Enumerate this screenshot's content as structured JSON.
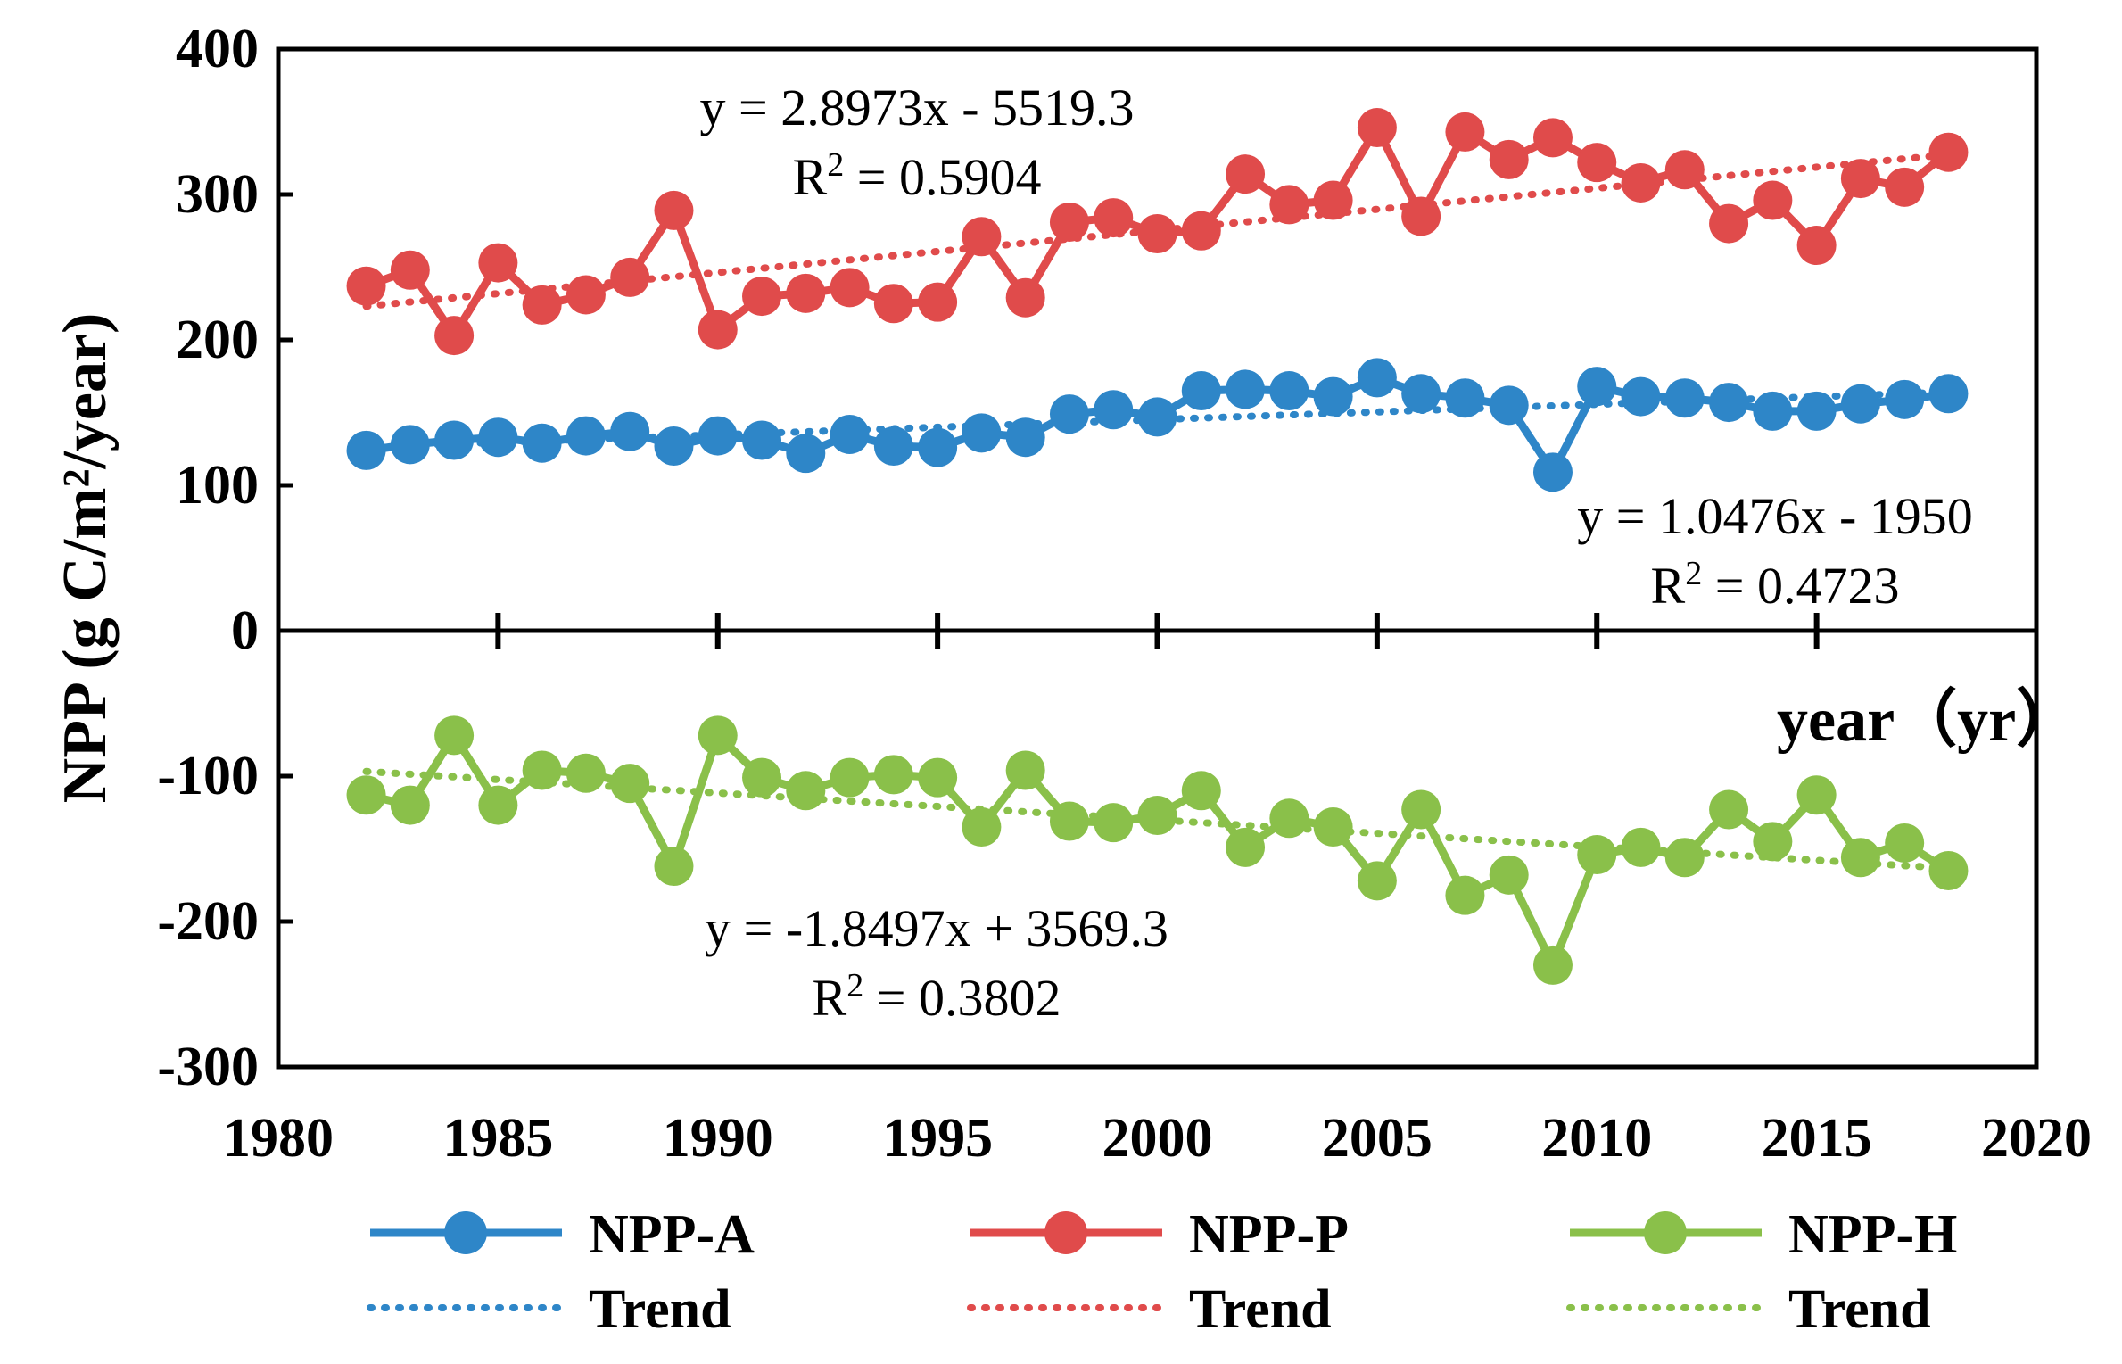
{
  "chart_data": {
    "type": "line",
    "ylabel": "NPP (g C/m²/year)",
    "xlabel": "year（yr）",
    "xlim": [
      1980,
      2020
    ],
    "ylim": [
      -300,
      400
    ],
    "xticks": [
      1980,
      1985,
      1990,
      1995,
      2000,
      2005,
      2010,
      2015,
      2020
    ],
    "yticks": [
      -300,
      -200,
      -100,
      0,
      100,
      200,
      300,
      400
    ],
    "grid": false,
    "legend_position": "bottom",
    "x": [
      1982,
      1983,
      1984,
      1985,
      1986,
      1987,
      1988,
      1989,
      1990,
      1991,
      1992,
      1993,
      1994,
      1995,
      1996,
      1997,
      1998,
      1999,
      2000,
      2001,
      2002,
      2003,
      2004,
      2005,
      2006,
      2007,
      2008,
      2009,
      2010,
      2011,
      2012,
      2013,
      2014,
      2015,
      2016,
      2017,
      2018
    ],
    "series": [
      {
        "name": "NPP-A",
        "color": "#2e86c8",
        "values": [
          124,
          128,
          131,
          133,
          129,
          134,
          137,
          127,
          134,
          131,
          122,
          135,
          127,
          126,
          136,
          133,
          149,
          152,
          147,
          165,
          166,
          165,
          161,
          174,
          163,
          160,
          155,
          109,
          168,
          161,
          160,
          157,
          151,
          151,
          156,
          159,
          163
        ]
      },
      {
        "name": "NPP-P",
        "color": "#e04b4b",
        "values": [
          237,
          248,
          203,
          253,
          224,
          231,
          243,
          289,
          207,
          230,
          232,
          236,
          225,
          226,
          271,
          229,
          281,
          284,
          273,
          275,
          314,
          293,
          296,
          346,
          285,
          343,
          324,
          339,
          322,
          308,
          317,
          280,
          296,
          265,
          311,
          305,
          329
        ]
      },
      {
        "name": "NPP-H",
        "color": "#8ac04a",
        "values": [
          -113,
          -120,
          -72,
          -120,
          -96,
          -98,
          -105,
          -162,
          -72,
          -101,
          -110,
          -101,
          -99,
          -101,
          -135,
          -96,
          -131,
          -132,
          -127,
          -110,
          -149,
          -129,
          -135,
          -172,
          -123,
          -182,
          -168,
          -230,
          -154,
          -149,
          -156,
          -123,
          -145,
          -113,
          -156,
          -146,
          -165
        ]
      }
    ],
    "trends": [
      {
        "name": "Trend",
        "series": "NPP-A",
        "slope": 1.0476,
        "intercept": -1950,
        "equation": "y = 1.0476x - 1950",
        "r2_prefix": "R",
        "r2_sup": "2",
        "r2_value": " = 0.4723"
      },
      {
        "name": "Trend",
        "series": "NPP-P",
        "slope": 2.8973,
        "intercept": -5519.3,
        "equation": "y = 2.8973x - 5519.3",
        "r2_prefix": "R",
        "r2_sup": "2",
        "r2_value": " = 0.5904"
      },
      {
        "name": "Trend",
        "series": "NPP-H",
        "slope": -1.8497,
        "intercept": 3569.3,
        "equation": "y = -1.8497x + 3569.3",
        "r2_prefix": "R",
        "r2_sup": "2",
        "r2_value": " = 0.3802"
      }
    ]
  },
  "legend": [
    {
      "label": "NPP-A",
      "color": "#2e86c8",
      "style": "line-marker"
    },
    {
      "label": "NPP-P",
      "color": "#e04b4b",
      "style": "line-marker"
    },
    {
      "label": "NPP-H",
      "color": "#8ac04a",
      "style": "line-marker"
    },
    {
      "label": "Trend",
      "color": "#2e86c8",
      "style": "dotted"
    },
    {
      "label": "Trend",
      "color": "#e04b4b",
      "style": "dotted"
    },
    {
      "label": "Trend",
      "color": "#8ac04a",
      "style": "dotted"
    }
  ]
}
